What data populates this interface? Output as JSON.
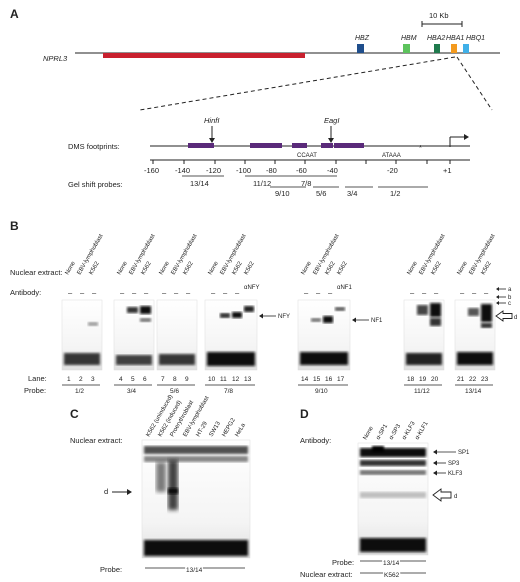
{
  "panel_a": {
    "letter": "A",
    "scale_bar": "10 Kb",
    "locus_label": "NPRL3",
    "genes": [
      {
        "name": "HBZ",
        "color": "#1f4e8c"
      },
      {
        "name": "HBM",
        "color": "#5cc35c"
      },
      {
        "name": "HBA2",
        "color": "#1f7a4d"
      },
      {
        "name": "HBA1",
        "color": "#f39a1e"
      },
      {
        "name": "HBQ1",
        "color": "#3fb0e8"
      }
    ],
    "nprl3_color": "#c8202e",
    "footprint_color": "#5a2a7a",
    "dms_label": "DMS footprints:",
    "gel_label": "Gel shift probes:",
    "sites": [
      "HinfI",
      "EagI"
    ],
    "motifs": [
      "CCAAT",
      "ATAAA"
    ],
    "star": "*",
    "tss_label": "+1",
    "axis_ticks": [
      "-160",
      "-140",
      "-120",
      "-100",
      "-80",
      "-60",
      "-40",
      "-20",
      "+1"
    ],
    "probes": [
      "13/14",
      "11/12",
      "7/8",
      "9/10",
      "5/6",
      "3/4",
      "1/2"
    ]
  },
  "panel_b": {
    "letter": "B",
    "nuclear_extract_label": "Nuclear extract:",
    "antibody_label": "Antibody:",
    "lane_label": "Lane:",
    "probe_label": "Probe:",
    "extract_none": "None",
    "extract_ebv": "EBV-lymphoblast",
    "extract_k562": "K562",
    "dash": "–",
    "anti_nfy": "αNFY",
    "anti_nf1": "αNF1",
    "lanes": [
      "1",
      "2",
      "3",
      "4",
      "5",
      "6",
      "7",
      "8",
      "9",
      "10",
      "11",
      "12",
      "13",
      "14",
      "15",
      "16",
      "17",
      "18",
      "19",
      "20",
      "21",
      "22",
      "23"
    ],
    "probes": [
      "1/2",
      "3/4",
      "5/6",
      "7/8",
      "9/10",
      "11/12",
      "13/14"
    ],
    "band_nfy": "NFY",
    "band_nf1": "NF1",
    "bands_right": [
      "a",
      "b",
      "c",
      "d"
    ]
  },
  "panel_c": {
    "letter": "C",
    "nuclear_extract_label": "Nuclear extract:",
    "extracts": [
      "K562 (uninduced)",
      "K562 (induced)",
      "Proerythroblast",
      "EBV-lymphoblast",
      "HT-29",
      "SW13",
      "HEPG2",
      "HeLa"
    ],
    "band_d": "d",
    "probe_label": "Probe:",
    "probe": "13/14"
  },
  "panel_d": {
    "letter": "D",
    "antibody_label": "Antibody:",
    "antibodies": [
      "None",
      "α-SP1",
      "α-SP3",
      "α-KLF3",
      "α-KLF1"
    ],
    "bands": [
      "SP1",
      "SP3",
      "KLF3",
      "d"
    ],
    "probe_label": "Probe:",
    "probe": "13/14",
    "nuclear_extract_label": "Nuclear extract:",
    "extract": "K562"
  }
}
